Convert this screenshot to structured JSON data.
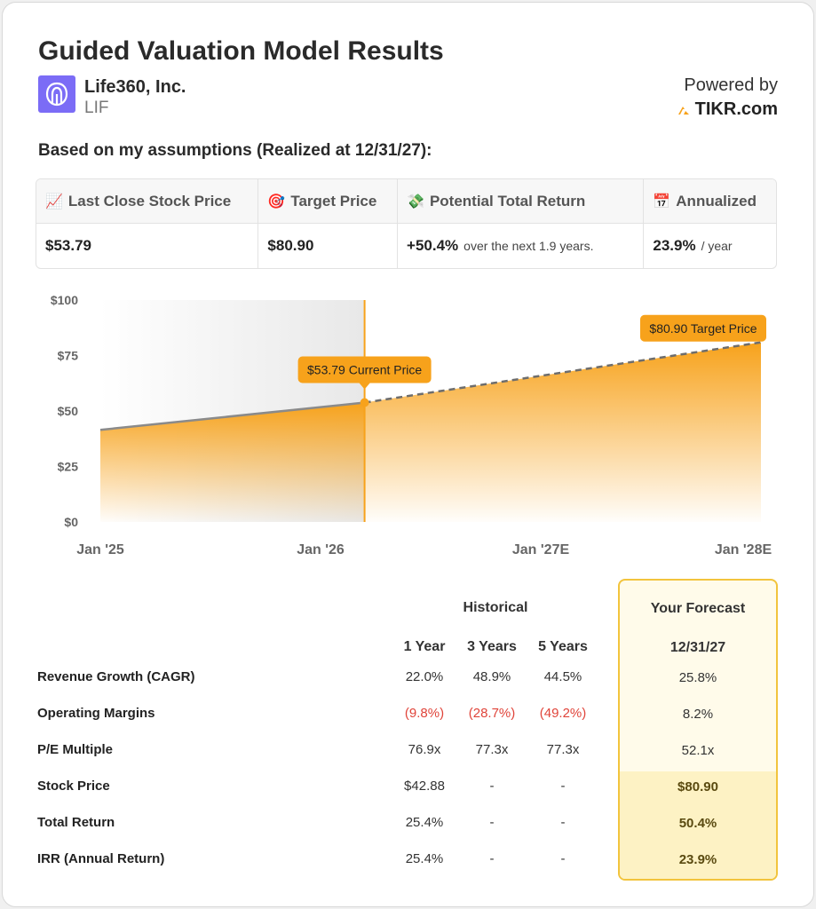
{
  "header": {
    "title": "Guided Valuation Model Results",
    "company_name": "Life360, Inc.",
    "ticker": "LIF",
    "powered_by": "Powered by",
    "brand": "TIKR.com"
  },
  "subtitle": "Based on my assumptions (Realized at 12/31/27):",
  "summary": {
    "last_close": {
      "icon": "📈",
      "label": "Last Close Stock Price",
      "value": "$53.79"
    },
    "target": {
      "icon": "🎯",
      "label": "Target Price",
      "value": "$80.90"
    },
    "potential": {
      "icon": "💸",
      "label": "Potential Total Return",
      "value": "+50.4%",
      "note": "over the next 1.9 years."
    },
    "annualized": {
      "icon": "📅",
      "label": "Annualized",
      "value": "23.9%",
      "note": "/ year"
    }
  },
  "colors": {
    "accent": "#f7a21b",
    "historical_fill": "#ededed",
    "forecast_box_border": "#f2c43d",
    "negative": "#e0443a"
  },
  "chart_data": {
    "type": "area",
    "x_tick_labels": [
      "Jan '25",
      "Jan '26",
      "Jan '27E",
      "Jan '28E"
    ],
    "y_tick_labels": [
      "$0",
      "$25",
      "$50",
      "$75",
      "$100"
    ],
    "ylim": [
      0,
      100
    ],
    "historical": {
      "x": [
        "2025-01-01",
        "2026-03-15"
      ],
      "y": [
        41.5,
        53.79
      ]
    },
    "forecast": {
      "x": [
        "2026-03-15",
        "2027-12-31"
      ],
      "y": [
        53.79,
        80.9
      ]
    },
    "current_label": "$53.79 Current Price",
    "target_label": "$80.90 Target Price"
  },
  "metrics": {
    "historical_header": "Historical",
    "forecast_header": "Your Forecast",
    "columns": [
      "1 Year",
      "3 Years",
      "5 Years"
    ],
    "forecast_column": "12/31/27",
    "rows": [
      {
        "label": "Revenue Growth (CAGR)",
        "values": [
          "22.0%",
          "48.9%",
          "44.5%"
        ],
        "forecast": "25.8%"
      },
      {
        "label": "Operating Margins",
        "values": [
          "(9.8%)",
          "(28.7%)",
          "(49.2%)"
        ],
        "forecast": "8.2%"
      },
      {
        "label": "P/E Multiple",
        "values": [
          "76.9x",
          "77.3x",
          "77.3x"
        ],
        "forecast": "52.1x"
      },
      {
        "label": "Stock Price",
        "values": [
          "$42.88",
          "-",
          "-"
        ],
        "forecast": "$80.90"
      },
      {
        "label": "Total Return",
        "values": [
          "25.4%",
          "-",
          "-"
        ],
        "forecast": "50.4%"
      },
      {
        "label": "IRR (Annual Return)",
        "values": [
          "25.4%",
          "-",
          "-"
        ],
        "forecast": "23.9%"
      }
    ]
  }
}
